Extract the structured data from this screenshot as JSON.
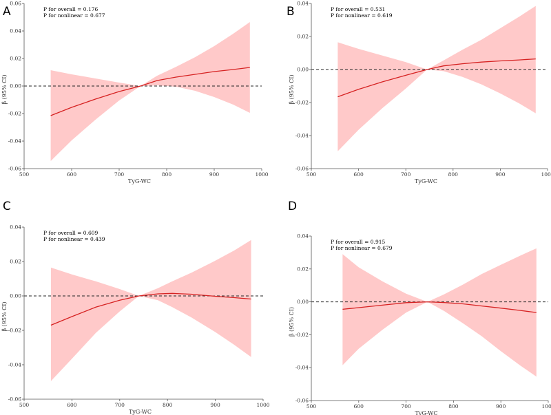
{
  "chart_data": [
    {
      "type": "line",
      "panel_label": "A",
      "title": "",
      "xlabel": "TyG-WC",
      "ylabel": "β (95% CI)",
      "xlim": [
        500,
        1000
      ],
      "ylim": [
        -0.06,
        0.06
      ],
      "xticks": [
        500,
        600,
        700,
        800,
        900,
        1000
      ],
      "xtick_labels": [
        "500",
        "600",
        "700",
        "800",
        "900",
        "1000"
      ],
      "yticks": [
        -0.06,
        -0.04,
        -0.02,
        0,
        0.02,
        0.04,
        0.06
      ],
      "ytick_labels": [
        "-0.06",
        "-0.04",
        "-0.02",
        "0.00",
        "0.02",
        "0.04",
        "0.06"
      ],
      "reference_line": 0,
      "annotations": [
        "P for overall = 0.176",
        "P for nonlinear = 0.677"
      ],
      "band_color": "#ffc9c9",
      "line_color": "#d62222",
      "series": [
        {
          "name": "β",
          "x": [
            556,
            600,
            650,
            700,
            745,
            780,
            820,
            860,
            900,
            940,
            975
          ],
          "values": [
            -0.0215,
            -0.0155,
            -0.0095,
            -0.004,
            0.0,
            0.004,
            0.0065,
            0.0085,
            0.0105,
            0.012,
            0.0135
          ]
        },
        {
          "name": "upper 95% CI",
          "x": [
            556,
            600,
            650,
            700,
            745,
            780,
            820,
            860,
            900,
            940,
            975
          ],
          "values": [
            0.0115,
            0.0085,
            0.0055,
            0.0025,
            0.0,
            0.0075,
            0.014,
            0.021,
            0.029,
            0.038,
            0.0465
          ]
        },
        {
          "name": "lower 95% CI",
          "x": [
            556,
            600,
            650,
            700,
            745,
            780,
            820,
            860,
            900,
            940,
            975
          ],
          "values": [
            -0.0545,
            -0.0395,
            -0.0245,
            -0.0105,
            0.0,
            0.0005,
            -0.0005,
            -0.0035,
            -0.008,
            -0.0135,
            -0.0195
          ]
        }
      ]
    },
    {
      "type": "line",
      "panel_label": "B",
      "title": "",
      "xlabel": "TyG-WC",
      "ylabel": "β (95% CI)",
      "xlim": [
        500,
        1000
      ],
      "ylim": [
        -0.06,
        0.04
      ],
      "xticks": [
        500,
        600,
        700,
        800,
        900,
        1000
      ],
      "xtick_labels": [
        "500",
        "600",
        "700",
        "800",
        "900",
        "1000"
      ],
      "yticks": [
        -0.06,
        -0.04,
        -0.02,
        0,
        0.02,
        0.04
      ],
      "ytick_labels": [
        "-0.06",
        "-0.04",
        "-0.02",
        "0.00",
        "0.02",
        "0.04"
      ],
      "reference_line": 0,
      "annotations": [
        "P for overall = 0.531",
        "P for nonlinear = 0.619"
      ],
      "band_color": "#ffc9c9",
      "line_color": "#d62222",
      "series": [
        {
          "name": "β",
          "x": [
            556,
            600,
            650,
            700,
            745,
            780,
            820,
            860,
            900,
            940,
            975
          ],
          "values": [
            -0.0165,
            -0.012,
            -0.0075,
            -0.0035,
            0.0,
            0.0022,
            0.0035,
            0.0045,
            0.0052,
            0.0058,
            0.0064
          ]
        },
        {
          "name": "upper 95% CI",
          "x": [
            556,
            600,
            650,
            700,
            745,
            780,
            820,
            860,
            900,
            940,
            975
          ],
          "values": [
            0.0165,
            0.0125,
            0.0085,
            0.0045,
            0.0,
            0.0055,
            0.012,
            0.018,
            0.025,
            0.032,
            0.0385
          ]
        },
        {
          "name": "lower 95% CI",
          "x": [
            556,
            600,
            650,
            700,
            745,
            780,
            820,
            860,
            900,
            940,
            975
          ],
          "values": [
            -0.0495,
            -0.0365,
            -0.0235,
            -0.0115,
            0.0,
            -0.001,
            -0.0045,
            -0.009,
            -0.0145,
            -0.0205,
            -0.0265
          ]
        }
      ]
    },
    {
      "type": "line",
      "panel_label": "C",
      "title": "",
      "xlabel": "TyG-WC",
      "ylabel": "β (95% CI)",
      "xlim": [
        500,
        1000
      ],
      "ylim": [
        -0.06,
        0.04
      ],
      "xticks": [
        500,
        600,
        700,
        800,
        900,
        1000
      ],
      "xtick_labels": [
        "500",
        "600",
        "700",
        "800",
        "900",
        "1000"
      ],
      "yticks": [
        -0.06,
        -0.04,
        -0.02,
        0,
        0.02,
        0.04
      ],
      "ytick_labels": [
        "-0.06",
        "-0.04",
        "-0.02",
        "0.00",
        "0.02",
        "0.04"
      ],
      "reference_line": 0,
      "annotations": [
        "P for overall = 0.609",
        "P for nonlinear = 0.439"
      ],
      "band_color": "#ffc9c9",
      "line_color": "#d62222",
      "series": [
        {
          "name": "β",
          "x": [
            556,
            600,
            650,
            700,
            740,
            780,
            810,
            850,
            900,
            940,
            975
          ],
          "values": [
            -0.017,
            -0.012,
            -0.0065,
            -0.0025,
            0.0,
            0.0012,
            0.0015,
            0.001,
            -0.0002,
            -0.001,
            -0.0018
          ]
        },
        {
          "name": "upper 95% CI",
          "x": [
            556,
            600,
            650,
            700,
            740,
            780,
            810,
            850,
            900,
            940,
            975
          ],
          "values": [
            0.0165,
            0.0125,
            0.0085,
            0.004,
            0.0,
            0.0045,
            0.0085,
            0.0135,
            0.0205,
            0.0265,
            0.0325
          ]
        },
        {
          "name": "lower 95% CI",
          "x": [
            556,
            600,
            650,
            700,
            740,
            780,
            810,
            850,
            900,
            940,
            975
          ],
          "values": [
            -0.0495,
            -0.0365,
            -0.0215,
            -0.009,
            0.0,
            -0.0025,
            -0.0065,
            -0.0125,
            -0.021,
            -0.0285,
            -0.0355
          ]
        }
      ]
    },
    {
      "type": "line",
      "panel_label": "D",
      "title": "",
      "xlabel": "TyG-WC",
      "ylabel": "β (95% CI)",
      "xlim": [
        500,
        1000
      ],
      "ylim": [
        -0.06,
        0.04
      ],
      "xticks": [
        500,
        600,
        700,
        800,
        900,
        1000
      ],
      "xtick_labels": [
        "500",
        "600",
        "700",
        "800",
        "900",
        "1000"
      ],
      "yticks": [
        -0.06,
        -0.04,
        -0.02,
        0,
        0.02,
        0.04
      ],
      "ytick_labels": [
        "-0.06",
        "-0.04",
        "-0.02",
        "0.00",
        "0.02",
        "0.04"
      ],
      "reference_line": 0,
      "annotations": [
        "P for overall = 0.915",
        "P for nonlinear = 0.679"
      ],
      "band_color": "#ffc9c9",
      "line_color": "#d62222",
      "series": [
        {
          "name": "β",
          "x": [
            566,
            600,
            650,
            700,
            745,
            780,
            820,
            860,
            900,
            940,
            975
          ],
          "values": [
            -0.0045,
            -0.0035,
            -0.002,
            -0.0005,
            0.0,
            -0.0004,
            -0.0012,
            -0.0025,
            -0.0038,
            -0.0052,
            -0.0065
          ]
        },
        {
          "name": "upper 95% CI",
          "x": [
            566,
            600,
            650,
            700,
            745,
            780,
            820,
            860,
            900,
            940,
            975
          ],
          "values": [
            0.029,
            0.021,
            0.0125,
            0.005,
            0.0,
            0.0045,
            0.0105,
            0.017,
            0.0225,
            0.028,
            0.0325
          ]
        },
        {
          "name": "lower 95% CI",
          "x": [
            566,
            600,
            650,
            700,
            745,
            780,
            820,
            860,
            900,
            940,
            975
          ],
          "values": [
            -0.0385,
            -0.0285,
            -0.017,
            -0.0065,
            0.0,
            -0.0055,
            -0.013,
            -0.021,
            -0.03,
            -0.0385,
            -0.0455
          ]
        }
      ]
    }
  ]
}
